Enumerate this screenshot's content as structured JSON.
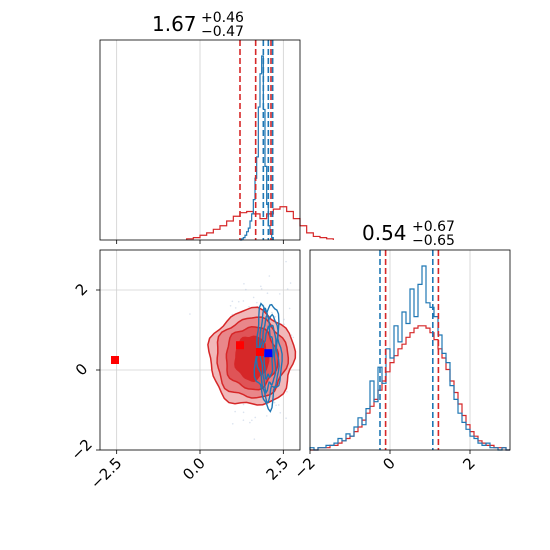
{
  "chart_data": {
    "type": "corner",
    "colors": {
      "red": "#d62728",
      "blue": "#1f77b4",
      "red_marker": "#ff0000",
      "blue_marker": "#0000ff",
      "grid": "#d0d0d0"
    },
    "panels": [
      {
        "id": "p1-marginal",
        "type": "histogram-step",
        "xlim": [
          -3,
          3
        ],
        "grid": true,
        "title": {
          "value": "1.67",
          "plus": "+0.46",
          "minus": "−0.47"
        },
        "ticks_x": [
          -2.5,
          0.0,
          2.5
        ],
        "series": [
          {
            "name": "red",
            "color": "#d62728",
            "step": 0.2,
            "start": -0.4,
            "counts": [
              1,
              2,
              4,
              6,
              9,
              12,
              16,
              20,
              23,
              24,
              22,
              18,
              22,
              26,
              28,
              24,
              18,
              12,
              6,
              3,
              2,
              1
            ]
          },
          {
            "name": "blue",
            "color": "#1f77b4",
            "step": 0.05,
            "start": 1.2,
            "counts": [
              0,
              1,
              2,
              4,
              7,
              10,
              16,
              22,
              34,
              52,
              70,
              112,
              140,
              155,
              110,
              62,
              30,
              12,
              5,
              2
            ]
          }
        ],
        "vlines": [
          {
            "x": 1.2,
            "color": "#d62728"
          },
          {
            "x": 1.67,
            "color": "#d62728"
          },
          {
            "x": 2.13,
            "color": "#d62728"
          },
          {
            "x": 1.9,
            "color": "#1f77b4"
          },
          {
            "x": 2.05,
            "color": "#1f77b4"
          },
          {
            "x": 2.18,
            "color": "#1f77b4"
          }
        ]
      },
      {
        "id": "p2-joint",
        "type": "2d-contour",
        "xlim": [
          -3,
          3
        ],
        "ylim": [
          -2,
          3
        ],
        "grid": true,
        "ticks_x": [
          -2.5,
          0.0,
          2.5
        ],
        "ticks_y": [
          -2,
          0,
          2
        ],
        "points": [
          {
            "x": -2.55,
            "y": 0.25,
            "color": "#ff0000"
          },
          {
            "x": 1.2,
            "y": 0.62,
            "color": "#ff0000"
          },
          {
            "x": 1.8,
            "y": 0.45,
            "color": "#ff0000"
          },
          {
            "x": 2.05,
            "y": 0.42,
            "color": "#0000ff"
          }
        ]
      },
      {
        "id": "p3-marginal",
        "type": "histogram-step",
        "xlim": [
          -2,
          3
        ],
        "grid": true,
        "title": {
          "value": "0.54",
          "plus": "+0.67",
          "minus": "−0.65"
        },
        "ticks_x": [
          -2,
          0,
          2
        ],
        "series": [
          {
            "name": "red",
            "color": "#d62728",
            "step": 0.1,
            "start": -2,
            "counts": [
              0,
              0,
              1,
              1,
              1,
              2,
              2,
              3,
              4,
              5,
              6,
              8,
              10,
              13,
              16,
              19,
              22,
              26,
              30,
              34,
              38,
              41,
              44,
              46,
              49,
              51,
              53,
              54,
              54,
              53,
              51,
              48,
              44,
              40,
              35,
              30,
              25,
              20,
              15,
              11,
              8,
              6,
              4,
              3,
              2,
              2,
              1,
              1,
              1,
              0
            ]
          },
          {
            "name": "blue",
            "color": "#1f77b4",
            "step": 0.1,
            "start": -2,
            "counts": [
              1,
              0,
              1,
              1,
              2,
              2,
              3,
              5,
              4,
              7,
              6,
              10,
              14,
              11,
              18,
              30,
              21,
              36,
              29,
              44,
              40,
              54,
              47,
              60,
              55,
              70,
              58,
              72,
              80,
              64,
              62,
              58,
              50,
              42,
              38,
              28,
              22,
              16,
              12,
              9,
              6,
              5,
              3,
              2,
              3,
              1,
              1,
              0,
              1,
              0
            ]
          }
        ],
        "vlines": [
          {
            "x": -0.11,
            "color": "#d62728"
          },
          {
            "x": 1.21,
            "color": "#d62728"
          },
          {
            "x": -0.25,
            "color": "#1f77b4"
          },
          {
            "x": 1.07,
            "color": "#1f77b4"
          }
        ]
      }
    ]
  }
}
